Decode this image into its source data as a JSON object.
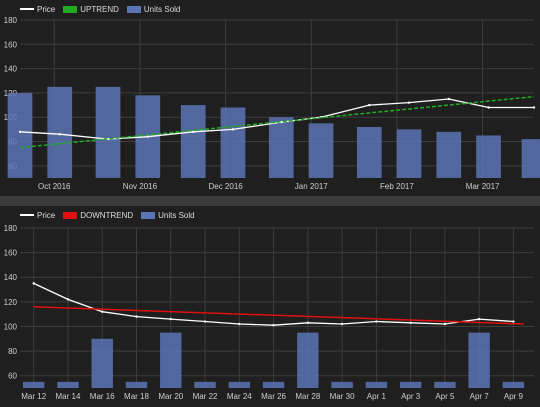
{
  "chart_data": [
    {
      "type": "line",
      "title": "",
      "legend": {
        "placement": "top-left",
        "entries": [
          {
            "name": "Price",
            "color": "#ffffff",
            "kind": "line"
          },
          {
            "name": "UPTREND",
            "color": "#22aa22",
            "kind": "box"
          },
          {
            "name": "Units Sold",
            "color": "#5b74b5",
            "kind": "box"
          }
        ]
      },
      "xlabel": "",
      "ylabel": "",
      "ylim": [
        50,
        180
      ],
      "yticks": [
        60,
        80,
        100,
        120,
        140,
        160,
        180
      ],
      "xticks": [
        "Oct 2016",
        "Nov 2016",
        "Dec 2016",
        "Jan 2017",
        "Feb 2017",
        "Mar 2017"
      ],
      "grid": true,
      "series": [
        {
          "name": "Price",
          "type": "line",
          "color": "#ffffff",
          "x": [
            "2016-10-01",
            "2016-10-15",
            "2016-11-01",
            "2016-11-15",
            "2016-12-01",
            "2016-12-15",
            "2017-01-01",
            "2017-01-15",
            "2017-02-01",
            "2017-02-15",
            "2017-03-01",
            "2017-03-15",
            "2017-03-31"
          ],
          "values": [
            88,
            86,
            82,
            84,
            88,
            90,
            96,
            100,
            110,
            112,
            115,
            108,
            108
          ]
        },
        {
          "name": "UPTREND",
          "type": "line",
          "color": "#22aa22",
          "x": [
            "2016-10-01",
            "2017-03-31"
          ],
          "values": [
            75,
            117
          ]
        },
        {
          "name": "Units Sold",
          "type": "bar",
          "color": "#5b74b5",
          "x": [
            "2016-10-01",
            "2016-10-15",
            "2016-11-01",
            "2016-11-15",
            "2016-12-01",
            "2016-12-15",
            "2017-01-01",
            "2017-01-15",
            "2017-02-01",
            "2017-02-15",
            "2017-03-01",
            "2017-03-15",
            "2017-03-31"
          ],
          "values": [
            120,
            125,
            125,
            118,
            110,
            108,
            100,
            95,
            92,
            90,
            88,
            85,
            82
          ]
        }
      ]
    },
    {
      "type": "line",
      "title": "",
      "legend": {
        "placement": "top-left",
        "entries": [
          {
            "name": "Price",
            "color": "#ffffff",
            "kind": "line"
          },
          {
            "name": "DOWNTREND",
            "color": "#dd1111",
            "kind": "box"
          },
          {
            "name": "Units Sold",
            "color": "#5b74b5",
            "kind": "box"
          }
        ]
      },
      "xlabel": "",
      "ylabel": "",
      "ylim": [
        50,
        180
      ],
      "yticks": [
        60,
        80,
        100,
        120,
        140,
        160,
        180
      ],
      "xticks": [
        "Mar 12",
        "Mar 14",
        "Mar 16",
        "Mar 18",
        "Mar 20",
        "Mar 22",
        "Mar 24",
        "Mar 26",
        "Mar 28",
        "Mar 30",
        "Apr 1",
        "Apr 3",
        "Apr 5",
        "Apr 7",
        "Apr 9"
      ],
      "grid": true,
      "series": [
        {
          "name": "Price",
          "type": "line",
          "color": "#ffffff",
          "x": [
            "Mar 12",
            "Mar 14",
            "Mar 16",
            "Mar 18",
            "Mar 20",
            "Mar 22",
            "Mar 24",
            "Mar 26",
            "Mar 28",
            "Mar 30",
            "Apr 1",
            "Apr 3",
            "Apr 5",
            "Apr 7",
            "Apr 9"
          ],
          "values": [
            135,
            122,
            112,
            108,
            106,
            104,
            102,
            101,
            103,
            102,
            104,
            103,
            102,
            106,
            104
          ]
        },
        {
          "name": "DOWNTREND",
          "type": "line",
          "color": "#dd1111",
          "x": [
            "Mar 12",
            "Apr 10"
          ],
          "values": [
            116,
            102
          ]
        },
        {
          "name": "Units Sold",
          "type": "bar",
          "color": "#5b74b5",
          "x": [
            "Mar 12",
            "Mar 14",
            "Mar 16",
            "Mar 18",
            "Mar 20",
            "Mar 22",
            "Mar 24",
            "Mar 26",
            "Mar 28",
            "Mar 30",
            "Apr 1",
            "Apr 3",
            "Apr 5",
            "Apr 7",
            "Apr 9"
          ],
          "values": [
            55,
            55,
            90,
            55,
            95,
            55,
            55,
            55,
            95,
            55,
            55,
            55,
            55,
            95,
            55
          ]
        }
      ]
    }
  ]
}
